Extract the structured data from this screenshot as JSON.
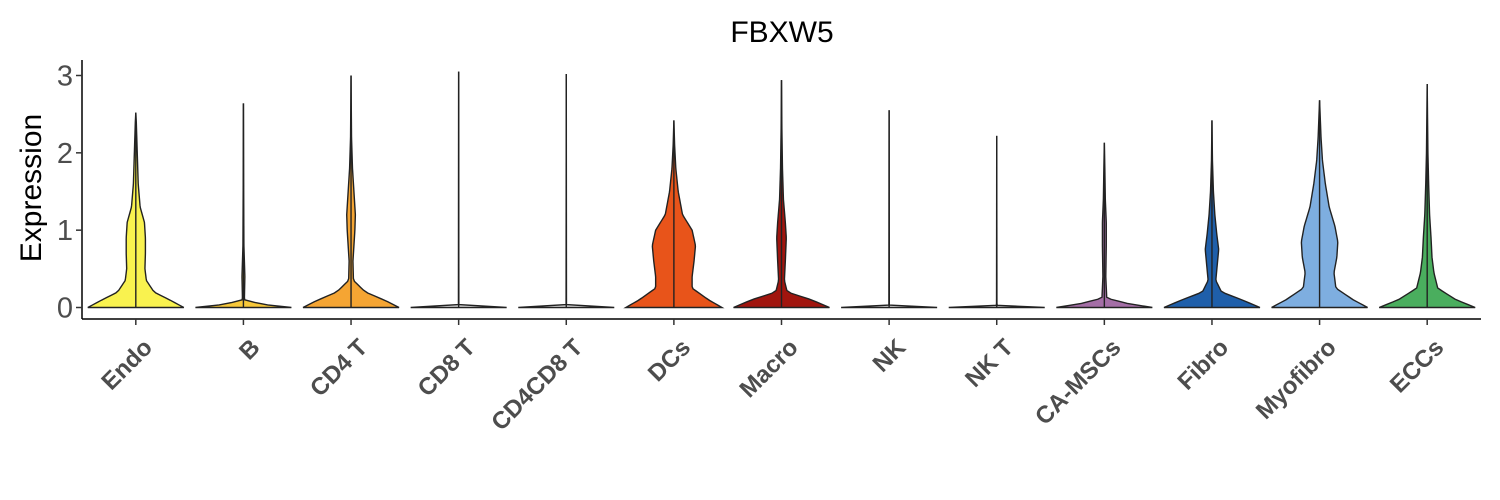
{
  "chart_data": {
    "type": "violin",
    "title": "FBXW5",
    "xlabel": "",
    "ylabel": "Expression",
    "ylim": [
      -0.15,
      3.2
    ],
    "yticks": [
      0,
      1,
      2,
      3
    ],
    "grid": false,
    "legend": "none",
    "categories": [
      "Endo",
      "B",
      "CD4 T",
      "CD8 T",
      "CD4CD8 T",
      "DCs",
      "Macro",
      "NK",
      "NK T",
      "CA-MSCs",
      "Fibro",
      "Myofibro",
      "ECCs"
    ],
    "colors": [
      "#F9F24F",
      "#F7C83A",
      "#F5A533",
      "#E2E2E2",
      "#E2E2E2",
      "#E8541A",
      "#A1150E",
      "#E2E2E2",
      "#E2E2E2",
      "#A46EA6",
      "#1F5FAA",
      "#7EAEE0",
      "#4AAE5E"
    ],
    "max_values": [
      2.52,
      2.64,
      3.0,
      3.05,
      3.02,
      2.42,
      2.94,
      2.55,
      2.22,
      2.13,
      2.42,
      2.68,
      2.89
    ],
    "density_profiles": [
      [
        [
          0,
          1.0
        ],
        [
          0.1,
          0.7
        ],
        [
          0.2,
          0.38
        ],
        [
          0.35,
          0.22
        ],
        [
          0.5,
          0.19
        ],
        [
          0.7,
          0.2
        ],
        [
          0.9,
          0.2
        ],
        [
          1.1,
          0.18
        ],
        [
          1.3,
          0.09
        ],
        [
          1.6,
          0.05
        ],
        [
          2.0,
          0.03
        ],
        [
          2.4,
          0.01
        ],
        [
          2.52,
          0
        ]
      ],
      [
        [
          0,
          1.0
        ],
        [
          0.04,
          0.4
        ],
        [
          0.1,
          0.02
        ],
        [
          0.4,
          0.03
        ],
        [
          0.8,
          0.01
        ],
        [
          1.5,
          0.005
        ],
        [
          2.64,
          0
        ]
      ],
      [
        [
          0,
          1.0
        ],
        [
          0.08,
          0.75
        ],
        [
          0.2,
          0.3
        ],
        [
          0.35,
          0.05
        ],
        [
          0.6,
          0.04
        ],
        [
          1.0,
          0.08
        ],
        [
          1.2,
          0.09
        ],
        [
          1.5,
          0.06
        ],
        [
          1.8,
          0.03
        ],
        [
          2.2,
          0.01
        ],
        [
          3.0,
          0
        ]
      ],
      [
        [
          0,
          1.0
        ],
        [
          0.01,
          0.05
        ],
        [
          0.03,
          0.004
        ],
        [
          3.05,
          0
        ]
      ],
      [
        [
          0,
          1.0
        ],
        [
          0.01,
          0.05
        ],
        [
          0.03,
          0.004
        ],
        [
          3.02,
          0
        ]
      ],
      [
        [
          0,
          1.0
        ],
        [
          0.1,
          0.72
        ],
        [
          0.25,
          0.38
        ],
        [
          0.4,
          0.38
        ],
        [
          0.6,
          0.42
        ],
        [
          0.8,
          0.45
        ],
        [
          1.0,
          0.38
        ],
        [
          1.2,
          0.18
        ],
        [
          1.5,
          0.09
        ],
        [
          1.8,
          0.04
        ],
        [
          2.1,
          0.015
        ],
        [
          2.42,
          0
        ]
      ],
      [
        [
          0,
          1.0
        ],
        [
          0.1,
          0.62
        ],
        [
          0.2,
          0.12
        ],
        [
          0.35,
          0.06
        ],
        [
          0.6,
          0.08
        ],
        [
          0.9,
          0.1
        ],
        [
          1.1,
          0.08
        ],
        [
          1.4,
          0.04
        ],
        [
          1.8,
          0.02
        ],
        [
          2.3,
          0.008
        ],
        [
          2.94,
          0
        ]
      ],
      [
        [
          0,
          1.0
        ],
        [
          0.01,
          0.05
        ],
        [
          0.03,
          0.004
        ],
        [
          2.55,
          0
        ]
      ],
      [
        [
          0,
          1.0
        ],
        [
          0.01,
          0.05
        ],
        [
          0.03,
          0.004
        ],
        [
          2.22,
          0
        ]
      ],
      [
        [
          0,
          1.0
        ],
        [
          0.05,
          0.5
        ],
        [
          0.12,
          0.05
        ],
        [
          0.4,
          0.03
        ],
        [
          0.8,
          0.04
        ],
        [
          1.1,
          0.04
        ],
        [
          1.4,
          0.02
        ],
        [
          1.8,
          0.01
        ],
        [
          2.13,
          0
        ]
      ],
      [
        [
          0,
          1.0
        ],
        [
          0.1,
          0.62
        ],
        [
          0.2,
          0.2
        ],
        [
          0.35,
          0.08
        ],
        [
          0.55,
          0.11
        ],
        [
          0.75,
          0.14
        ],
        [
          0.95,
          0.1
        ],
        [
          1.2,
          0.06
        ],
        [
          1.5,
          0.03
        ],
        [
          1.9,
          0.01
        ],
        [
          2.42,
          0
        ]
      ],
      [
        [
          0,
          1.0
        ],
        [
          0.1,
          0.7
        ],
        [
          0.25,
          0.34
        ],
        [
          0.45,
          0.3
        ],
        [
          0.65,
          0.36
        ],
        [
          0.85,
          0.38
        ],
        [
          1.05,
          0.32
        ],
        [
          1.3,
          0.2
        ],
        [
          1.6,
          0.12
        ],
        [
          1.9,
          0.06
        ],
        [
          2.2,
          0.03
        ],
        [
          2.68,
          0
        ]
      ],
      [
        [
          0,
          1.0
        ],
        [
          0.1,
          0.6
        ],
        [
          0.25,
          0.22
        ],
        [
          0.45,
          0.14
        ],
        [
          0.65,
          0.1
        ],
        [
          0.9,
          0.08
        ],
        [
          1.2,
          0.05
        ],
        [
          1.6,
          0.03
        ],
        [
          2.0,
          0.015
        ],
        [
          2.89,
          0
        ]
      ]
    ]
  }
}
